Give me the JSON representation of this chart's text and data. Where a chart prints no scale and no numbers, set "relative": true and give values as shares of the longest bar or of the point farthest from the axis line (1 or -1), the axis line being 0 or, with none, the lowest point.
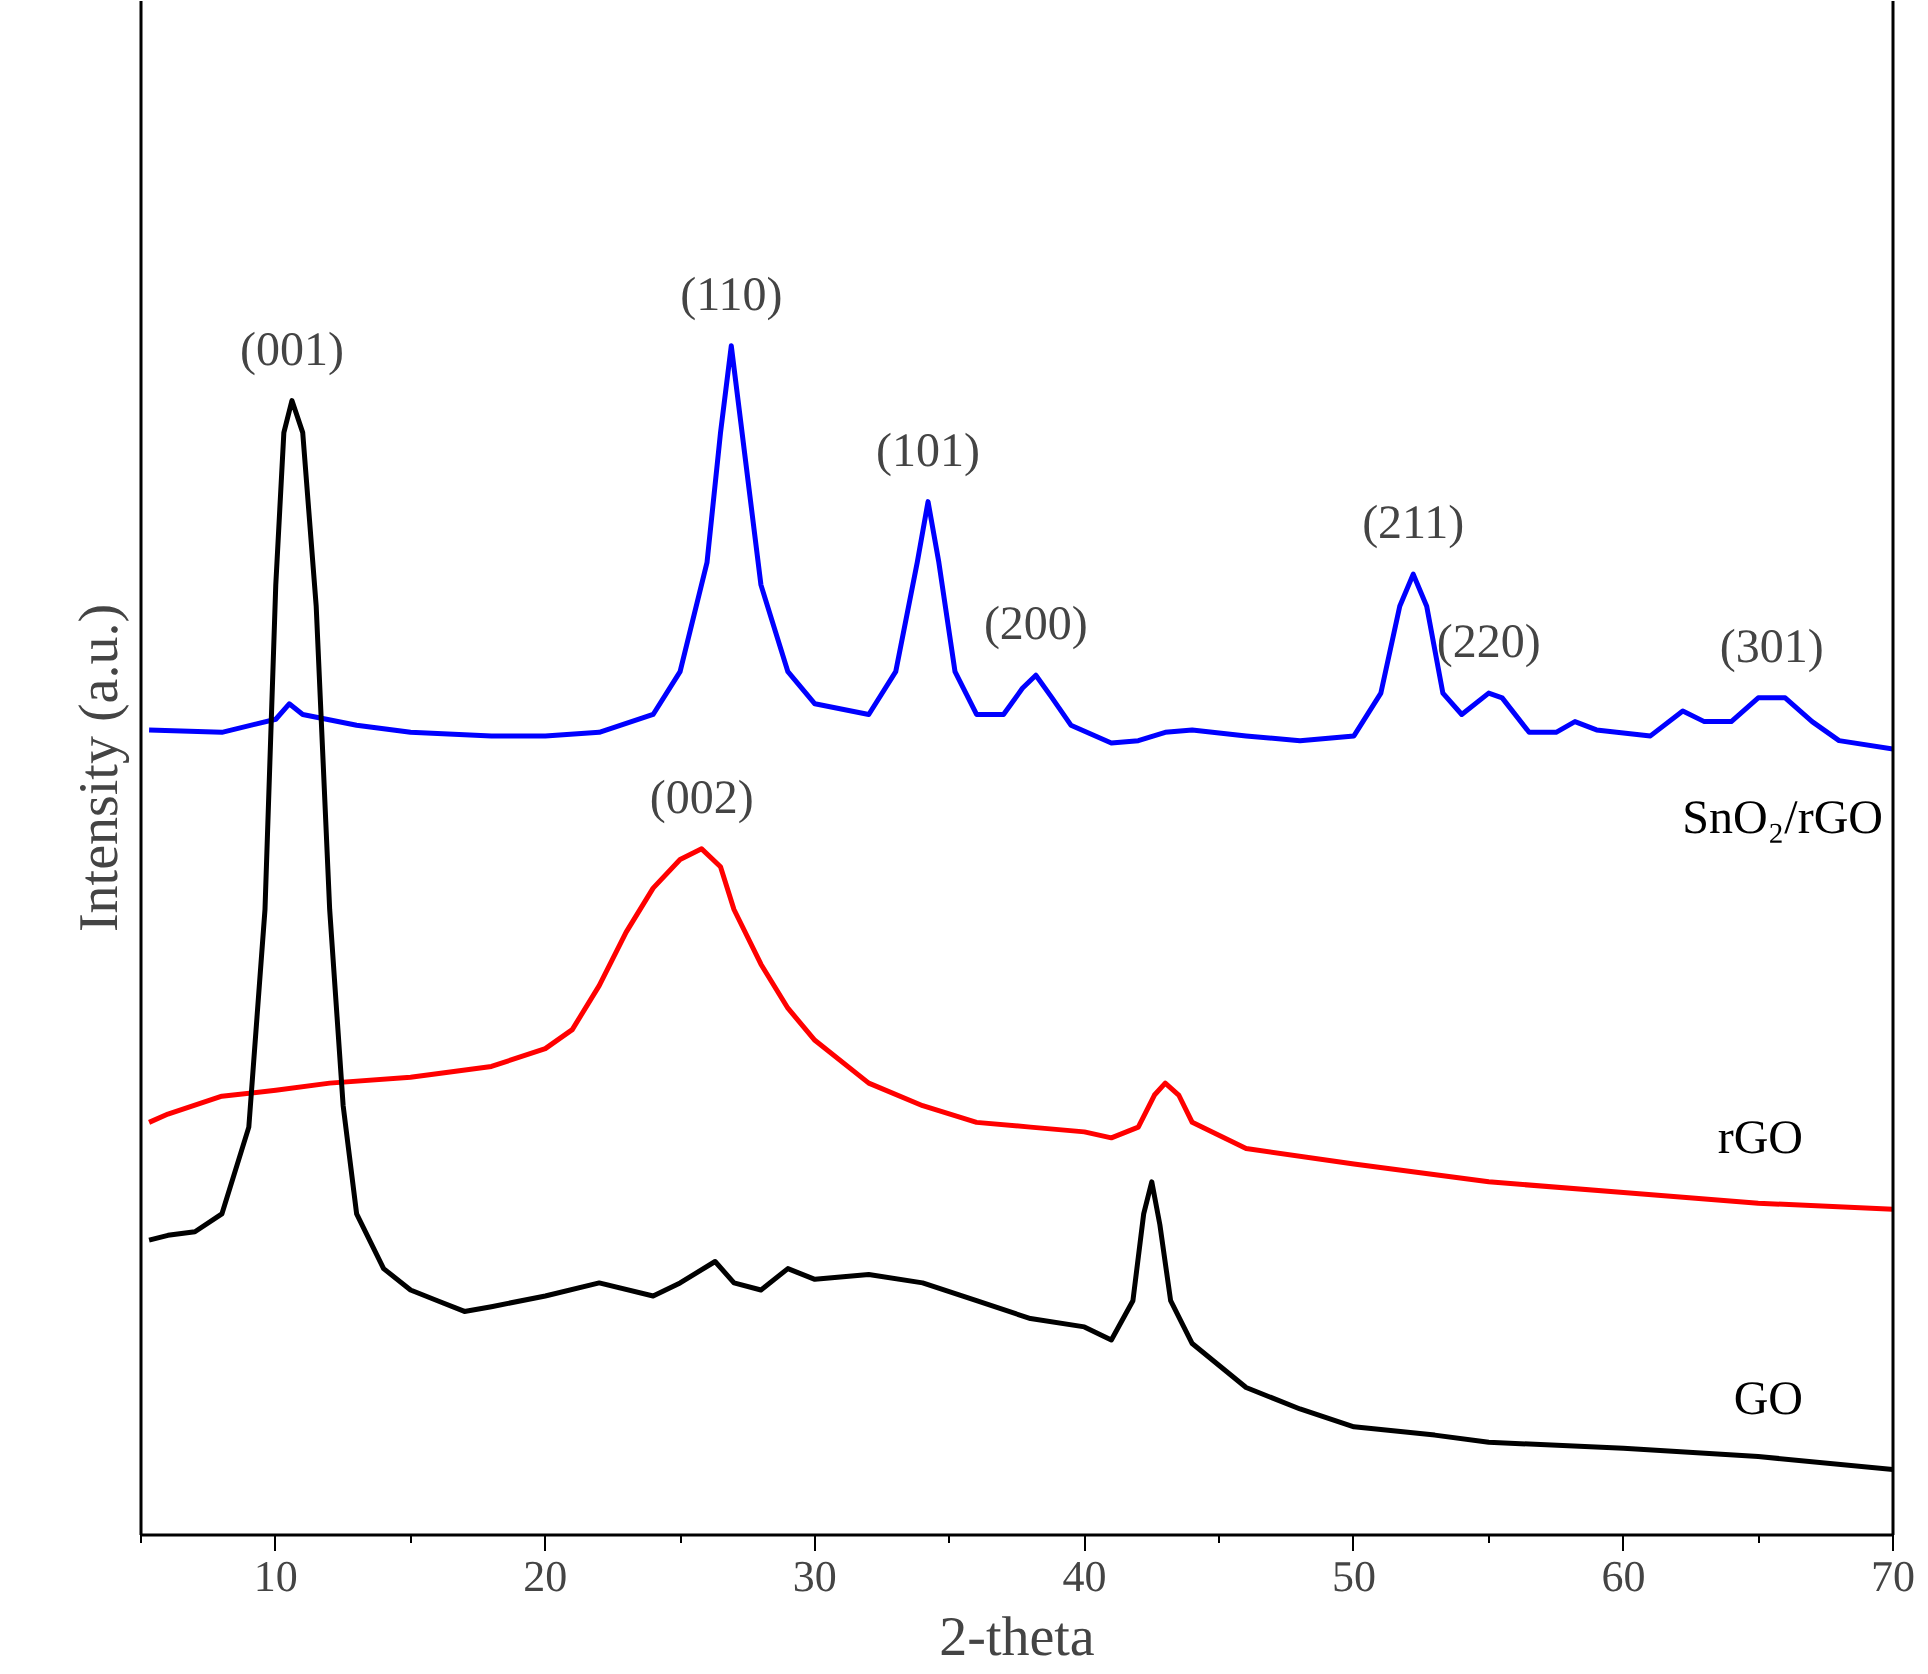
{
  "chart_data": {
    "type": "line",
    "relative": true,
    "xlabel": "2-theta",
    "ylabel": "Intensity (a.u.)",
    "xlim": [
      5,
      70
    ],
    "xticks": [
      10,
      20,
      30,
      40,
      50,
      60,
      70
    ],
    "grid": false,
    "marker": "none",
    "line_style": "solid",
    "series": [
      {
        "name": "SnO₂/rGO",
        "color": "#0000ff",
        "x": [
          5.3,
          8,
          10,
          10.5,
          11,
          13,
          15,
          18,
          20,
          22,
          24,
          25,
          26,
          26.5,
          26.9,
          27.3,
          28,
          29,
          30,
          32,
          33,
          33.8,
          34.2,
          34.6,
          35.2,
          36,
          37,
          37.7,
          38.2,
          38.8,
          39.5,
          41,
          42,
          43,
          44,
          46,
          48,
          50,
          51,
          51.7,
          52.2,
          52.7,
          53.3,
          54,
          55,
          55.5,
          56.5,
          57.5,
          58.2,
          59,
          61,
          62.2,
          63,
          64,
          65,
          66,
          67,
          68,
          70
        ],
        "values": [
          0.677,
          0.675,
          0.686,
          0.699,
          0.69,
          0.681,
          0.675,
          0.672,
          0.672,
          0.675,
          0.69,
          0.726,
          0.818,
          0.927,
          1,
          0.927,
          0.799,
          0.726,
          0.699,
          0.69,
          0.726,
          0.818,
          0.869,
          0.818,
          0.726,
          0.69,
          0.69,
          0.712,
          0.723,
          0.704,
          0.681,
          0.666,
          0.668,
          0.675,
          0.677,
          0.672,
          0.668,
          0.672,
          0.708,
          0.781,
          0.808,
          0.781,
          0.708,
          0.69,
          0.708,
          0.704,
          0.675,
          0.675,
          0.684,
          0.677,
          0.672,
          0.693,
          0.684,
          0.684,
          0.704,
          0.704,
          0.684,
          0.668,
          0.661
        ]
      },
      {
        "name": "rGO",
        "color": "#ff0000",
        "x": [
          5.3,
          6,
          8,
          10,
          12,
          15,
          18,
          20,
          21,
          22,
          23,
          24,
          25,
          25.8,
          26.5,
          27,
          28,
          29,
          30,
          32,
          34,
          36,
          38,
          40,
          41,
          42,
          42.6,
          43,
          43.5,
          44,
          46,
          50,
          55,
          60,
          65,
          70
        ],
        "values": [
          0.347,
          0.354,
          0.369,
          0.374,
          0.38,
          0.385,
          0.394,
          0.409,
          0.425,
          0.462,
          0.507,
          0.544,
          0.568,
          0.577,
          0.562,
          0.526,
          0.48,
          0.443,
          0.416,
          0.38,
          0.361,
          0.347,
          0.343,
          0.339,
          0.334,
          0.343,
          0.37,
          0.38,
          0.37,
          0.347,
          0.325,
          0.312,
          0.297,
          0.288,
          0.279,
          0.274
        ]
      },
      {
        "name": "GO",
        "color": "#000000",
        "x": [
          5.3,
          6,
          7,
          8,
          9,
          9.6,
          10,
          10.3,
          10.6,
          11,
          11.5,
          12,
          12.5,
          13,
          14,
          15,
          16,
          17,
          18,
          20,
          22,
          24,
          25,
          26.3,
          27,
          28,
          29,
          30,
          32,
          34,
          36,
          38,
          40,
          41,
          41.8,
          42.2,
          42.5,
          42.8,
          43.2,
          44,
          46,
          48,
          50,
          53,
          55,
          60,
          65,
          70
        ],
        "values": [
          0.248,
          0.252,
          0.255,
          0.27,
          0.343,
          0.526,
          0.799,
          0.927,
          0.954,
          0.927,
          0.781,
          0.526,
          0.361,
          0.27,
          0.224,
          0.206,
          0.197,
          0.188,
          0.192,
          0.201,
          0.212,
          0.201,
          0.212,
          0.23,
          0.212,
          0.206,
          0.224,
          0.215,
          0.219,
          0.212,
          0.197,
          0.182,
          0.175,
          0.164,
          0.197,
          0.27,
          0.297,
          0.261,
          0.197,
          0.161,
          0.124,
          0.106,
          0.091,
          0.084,
          0.078,
          0.073,
          0.066,
          0.055
        ]
      }
    ],
    "annotations": [
      {
        "text": "(001)",
        "x": 10.6,
        "y": 0.954
      },
      {
        "text": "(110)",
        "x": 26.9,
        "y": 1
      },
      {
        "text": "(101)",
        "x": 34.2,
        "y": 0.869
      },
      {
        "text": "(200)",
        "x": 38.2,
        "y": 0.723
      },
      {
        "text": "(211)",
        "x": 52.2,
        "y": 0.808
      },
      {
        "text": "(220)",
        "x": 55,
        "y": 0.708
      },
      {
        "text": "(301)",
        "x": 65.5,
        "y": 0.704
      },
      {
        "text": "(002)",
        "x": 25.8,
        "y": 0.577
      }
    ]
  }
}
